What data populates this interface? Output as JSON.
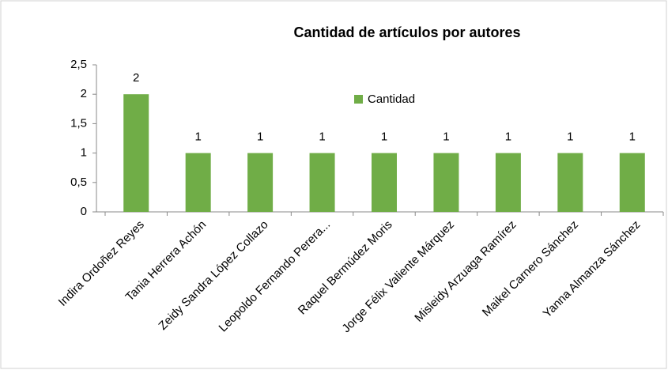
{
  "chart_data": {
    "type": "bar",
    "title": "Cantidad de artículos por autores",
    "categories": [
      "Indira Ordoñez Reyes",
      "Tania Herrera Achón",
      "Zeidy Sandra López Collazo",
      "Leopoldo Fernando Perera...",
      "Raquel Bermúdez Moris",
      "Jorge Félix Valiente Márquez",
      "Misleidy Arzuaga Ramírez",
      "Maikel Carnero Sánchez",
      "Yanna Almanza Sánchez"
    ],
    "series": [
      {
        "name": "Cantidad",
        "color": "#70ad47",
        "values": [
          2,
          1,
          1,
          1,
          1,
          1,
          1,
          1,
          1
        ]
      }
    ],
    "ylim": [
      0,
      2.5
    ],
    "yticks": [
      0,
      {
        "value": 0.5,
        "label": "0,5"
      },
      1,
      {
        "value": 1.5,
        "label": "1,5"
      },
      2,
      {
        "value": 2.5,
        "label": "2,5"
      }
    ],
    "grid": false,
    "legend": "top-center"
  }
}
